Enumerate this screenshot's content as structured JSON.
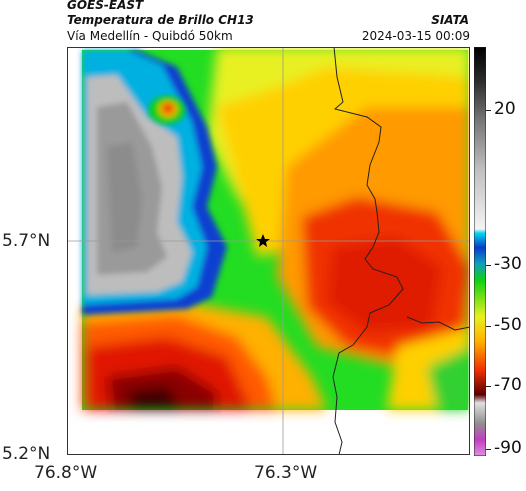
{
  "header": {
    "satellite": "GOES-EAST",
    "product": "Temperatura de Brillo CH13",
    "org": "SIATA",
    "route": "Vía Medellín - Quibdó 50km",
    "datetime": "2024-03-15 00:09"
  },
  "map": {
    "lat_labels": [
      "5.7°N",
      "5.2°N"
    ],
    "lon_labels": [
      "76.8°W",
      "76.3°W"
    ],
    "marker_icon": "star-icon"
  },
  "colorbar": {
    "ticks": [
      "20",
      "-30",
      "-50",
      "-70",
      "-90"
    ],
    "colors": {
      "white": "#f2f2f2",
      "gray": "#8f8f8f",
      "black": "#000000",
      "cyan": "#00c8e8",
      "blue": "#0a3cc8",
      "green": "#10d010",
      "yellow": "#ffff00",
      "orange": "#ff9a00",
      "red": "#ee1a00",
      "darkred": "#5a0000",
      "magenta": "#c040c0"
    }
  }
}
